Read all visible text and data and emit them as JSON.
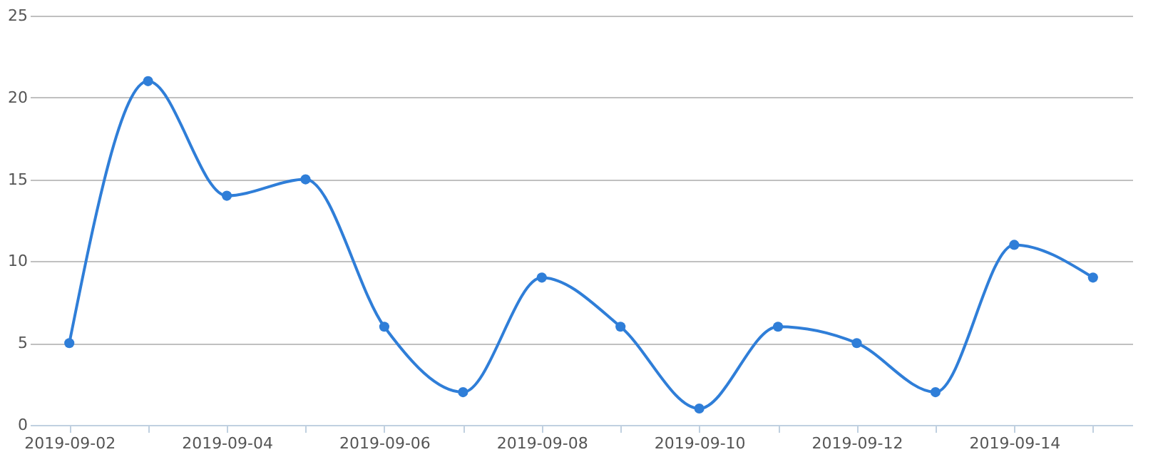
{
  "chart_data": {
    "type": "line",
    "categories": [
      "2019-09-02",
      null,
      "2019-09-04",
      null,
      "2019-09-06",
      null,
      "2019-09-08",
      null,
      "2019-09-10",
      null,
      "2019-09-12",
      null,
      "2019-09-14",
      null
    ],
    "series": [
      {
        "color": "#2f7ed8",
        "values": [
          5,
          21,
          14,
          15,
          6,
          2,
          9,
          6,
          1,
          6,
          5,
          2,
          11,
          9
        ]
      }
    ],
    "ylim": [
      0,
      25
    ],
    "yticks": [
      0,
      5,
      10,
      15,
      20,
      25
    ],
    "grid": "y",
    "marker": "circle",
    "line_style": "solid"
  }
}
